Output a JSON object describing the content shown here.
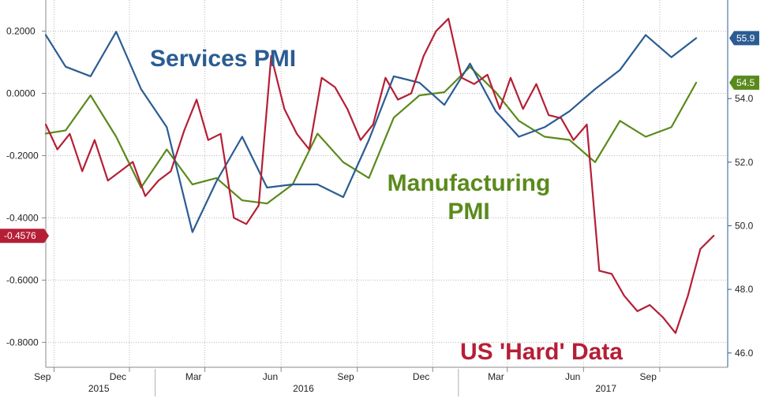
{
  "chart_data": {
    "type": "line",
    "title": "",
    "xlabel": "",
    "ylabel": "",
    "x_ticks": [
      {
        "label": "Sep",
        "date": "2015-09"
      },
      {
        "label": "Dec",
        "date": "2015-12"
      },
      {
        "label": "Mar",
        "date": "2016-03"
      },
      {
        "label": "Jun",
        "date": "2016-06"
      },
      {
        "label": "Sep",
        "date": "2016-09"
      },
      {
        "label": "Dec",
        "date": "2016-12"
      },
      {
        "label": "Mar",
        "date": "2017-03"
      },
      {
        "label": "Jun",
        "date": "2017-06"
      },
      {
        "label": "Sep",
        "date": "2017-09"
      }
    ],
    "year_labels": [
      {
        "label": "2015",
        "date": "2015-10-25"
      },
      {
        "label": "2016",
        "date": "2016-06-28"
      },
      {
        "label": "2017",
        "date": "2017-06-28"
      }
    ],
    "x_range": [
      "2015-08-22",
      "2017-11-22"
    ],
    "left_axis": {
      "ylim": [
        -0.88,
        0.3
      ],
      "ticks": [
        "0.2000",
        "0.0000",
        "-0.2000",
        "-0.4000",
        "-0.6000",
        "-0.8000"
      ],
      "tick_values": [
        0.2,
        0.0,
        -0.2,
        -0.4,
        -0.6,
        -0.8
      ]
    },
    "right_axis": {
      "ylim": [
        45.55,
        57.1
      ],
      "ticks": [
        "54.0",
        "52.0",
        "50.0",
        "48.0",
        "46.0"
      ],
      "tick_values": [
        54.0,
        52.0,
        50.0,
        48.0,
        46.0
      ]
    },
    "series": [
      {
        "name": "Services PMI",
        "axis": "right",
        "color": "#2b5c93",
        "x": [
          "2015-08-22",
          "2015-09-15",
          "2015-10-15",
          "2015-11-15",
          "2015-12-15",
          "2016-01-15",
          "2016-02-15",
          "2016-03-15",
          "2016-04-15",
          "2016-05-15",
          "2016-06-15",
          "2016-07-15",
          "2016-08-15",
          "2016-09-15",
          "2016-10-15",
          "2016-11-15",
          "2016-12-15",
          "2017-01-15",
          "2017-02-15",
          "2017-03-15",
          "2017-04-15",
          "2017-05-15",
          "2017-06-15",
          "2017-07-15",
          "2017-08-15",
          "2017-09-15",
          "2017-10-15"
        ],
        "values": [
          56.0,
          55.0,
          54.7,
          56.1,
          54.3,
          53.1,
          49.8,
          51.4,
          52.8,
          51.2,
          51.3,
          51.3,
          50.9,
          52.7,
          54.7,
          54.5,
          53.8,
          55.1,
          53.6,
          52.8,
          53.1,
          53.6,
          54.3,
          54.9,
          56.0,
          55.3,
          55.9
        ],
        "last_label": "55.9"
      },
      {
        "name": "Manufacturing PMI",
        "axis": "right",
        "color": "#5a8a1c",
        "x": [
          "2015-08-22",
          "2015-09-15",
          "2015-10-15",
          "2015-11-15",
          "2015-12-15",
          "2016-01-15",
          "2016-02-15",
          "2016-03-15",
          "2016-04-15",
          "2016-05-15",
          "2016-06-15",
          "2016-07-15",
          "2016-08-15",
          "2016-09-15",
          "2016-10-15",
          "2016-11-15",
          "2016-12-15",
          "2017-01-15",
          "2017-02-15",
          "2017-03-15",
          "2017-04-15",
          "2017-05-15",
          "2017-06-15",
          "2017-07-15",
          "2017-08-15",
          "2017-09-15",
          "2017-10-15"
        ],
        "values": [
          52.9,
          53.0,
          54.1,
          52.8,
          51.2,
          52.4,
          51.3,
          51.5,
          50.8,
          50.7,
          51.3,
          52.9,
          52.0,
          51.5,
          53.4,
          54.1,
          54.2,
          55.0,
          54.2,
          53.3,
          52.8,
          52.7,
          52.0,
          53.3,
          52.8,
          53.1,
          54.5
        ],
        "last_label": "54.5"
      },
      {
        "name": "US 'Hard' Data",
        "axis": "left",
        "color": "#b51f36",
        "x": [
          "2015-08-22",
          "2015-09-05",
          "2015-09-20",
          "2015-10-05",
          "2015-10-20",
          "2015-11-05",
          "2015-11-20",
          "2015-12-05",
          "2015-12-20",
          "2016-01-05",
          "2016-01-20",
          "2016-02-05",
          "2016-02-20",
          "2016-03-05",
          "2016-03-20",
          "2016-04-05",
          "2016-04-20",
          "2016-05-05",
          "2016-05-20",
          "2016-06-05",
          "2016-06-20",
          "2016-07-05",
          "2016-07-20",
          "2016-08-05",
          "2016-08-20",
          "2016-09-05",
          "2016-09-20",
          "2016-10-05",
          "2016-10-20",
          "2016-11-05",
          "2016-11-20",
          "2016-12-05",
          "2016-12-20",
          "2017-01-05",
          "2017-01-20",
          "2017-02-05",
          "2017-02-20",
          "2017-03-05",
          "2017-03-20",
          "2017-04-05",
          "2017-04-20",
          "2017-05-05",
          "2017-05-20",
          "2017-06-05",
          "2017-06-20",
          "2017-07-05",
          "2017-07-20",
          "2017-08-05",
          "2017-08-20",
          "2017-09-05",
          "2017-09-20",
          "2017-10-05",
          "2017-10-20",
          "2017-11-05"
        ],
        "values": [
          -0.1,
          -0.18,
          -0.13,
          -0.25,
          -0.15,
          -0.28,
          -0.25,
          -0.22,
          -0.33,
          -0.28,
          -0.25,
          -0.12,
          -0.02,
          -0.15,
          -0.13,
          -0.4,
          -0.42,
          -0.36,
          0.12,
          -0.05,
          -0.13,
          -0.18,
          0.05,
          0.02,
          -0.05,
          -0.15,
          -0.1,
          0.05,
          -0.02,
          0.0,
          0.12,
          0.2,
          0.24,
          0.05,
          0.03,
          0.06,
          -0.05,
          0.05,
          -0.05,
          0.03,
          -0.07,
          -0.08,
          -0.15,
          -0.1,
          -0.57,
          -0.58,
          -0.65,
          -0.7,
          -0.68,
          -0.72,
          -0.77,
          -0.65,
          -0.5,
          -0.4576
        ],
        "last_label": "-0.4576"
      }
    ],
    "annotations": [
      {
        "text": "Services PMI",
        "color": "#2b5c93"
      },
      {
        "text": "Manufacturing",
        "color": "#5a8a1c"
      },
      {
        "text": "PMI",
        "color": "#5a8a1c"
      },
      {
        "text": "US 'Hard' Data",
        "color": "#b51f36"
      }
    ],
    "grid": true,
    "legend": "none"
  }
}
